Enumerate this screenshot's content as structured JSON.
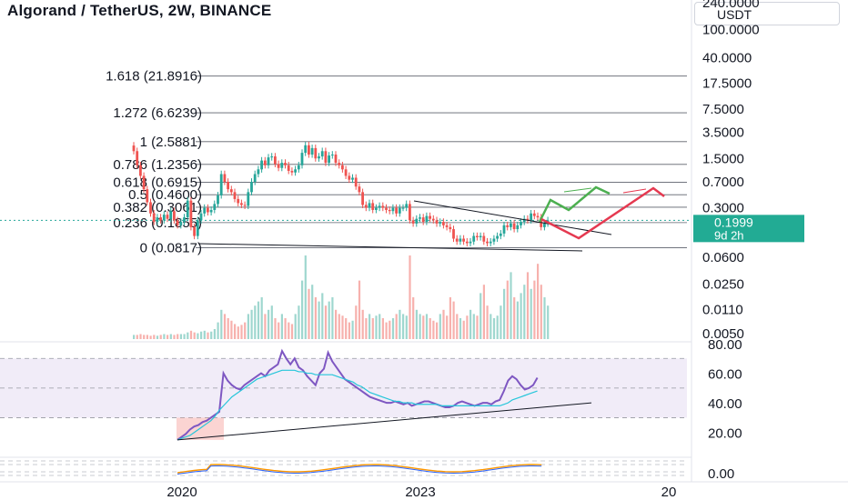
{
  "header": {
    "title": "Algorand / TetherUS, 2W, BINANCE",
    "currency": "USDT"
  },
  "chart_data": [
    {
      "type": "candlestick",
      "title": "Algorand / TetherUS, 2W, BINANCE",
      "y_scale": "log",
      "price_tick_labels": [
        "240.0000",
        "100.0000",
        "40.0000",
        "17.5000",
        "7.5000",
        "3.5000",
        "1.5000",
        "0.7000",
        "0.3000",
        "0.1999",
        "0.0600",
        "0.0250",
        "0.0110",
        "0.0050"
      ],
      "current_price": "0.1999",
      "countdown": "9d 2h",
      "x_tick_labels": [
        "2020",
        "2023",
        "20"
      ],
      "fib_levels": [
        {
          "label": "1.618 (21.8916)",
          "value": 21.8916
        },
        {
          "label": "1.272 (6.6239)",
          "value": 6.6239
        },
        {
          "label": "1 (2.5881)",
          "value": 2.5881
        },
        {
          "label": "0.786 (1.2356)",
          "value": 1.2356
        },
        {
          "label": "0.618 (0.6915)",
          "value": 0.6915
        },
        {
          "label": "0.5 (0.4600)",
          "value": 0.46
        },
        {
          "label": "0.382 (0.3061)",
          "value": 0.3061
        },
        {
          "label": "0.236 (0.1855)",
          "value": 0.1855
        },
        {
          "label": "0 (0.0817)",
          "value": 0.0817
        }
      ],
      "closes": [
        1.9,
        1.2,
        0.85,
        0.55,
        0.36,
        0.25,
        0.19,
        0.22,
        0.2,
        0.24,
        0.21,
        0.27,
        0.2,
        0.17,
        0.19,
        0.22,
        0.38,
        0.16,
        0.12,
        0.2,
        0.25,
        0.3,
        0.26,
        0.28,
        0.34,
        0.45,
        0.9,
        0.7,
        0.55,
        0.5,
        0.4,
        0.35,
        0.33,
        0.32,
        0.5,
        0.7,
        0.9,
        1.05,
        1.4,
        1.2,
        1.55,
        1.6,
        1.25,
        1.1,
        1.3,
        1.2,
        1.0,
        0.95,
        1.05,
        1.2,
        1.8,
        2.3,
        1.7,
        2.1,
        1.5,
        1.6,
        1.9,
        1.3,
        1.65,
        1.7,
        1.3,
        1.2,
        1.05,
        0.85,
        0.75,
        0.8,
        0.6,
        0.5,
        0.33,
        0.3,
        0.35,
        0.28,
        0.3,
        0.32,
        0.3,
        0.28,
        0.27,
        0.3,
        0.25,
        0.3,
        0.3,
        0.34,
        0.2,
        0.18,
        0.21,
        0.22,
        0.19,
        0.23,
        0.21,
        0.2,
        0.18,
        0.19,
        0.17,
        0.16,
        0.15,
        0.11,
        0.1,
        0.11,
        0.1,
        0.095,
        0.1,
        0.12,
        0.115,
        0.12,
        0.1,
        0.095,
        0.1,
        0.11,
        0.12,
        0.13,
        0.17,
        0.16,
        0.18,
        0.15,
        0.17,
        0.19,
        0.21,
        0.2,
        0.25,
        0.23,
        0.22,
        0.16,
        0.18,
        0.2
      ],
      "volume_relative": [
        0.05,
        0.05,
        0.06,
        0.05,
        0.05,
        0.04,
        0.05,
        0.04,
        0.05,
        0.06,
        0.05,
        0.06,
        0.05,
        0.06,
        0.06,
        0.06,
        0.08,
        0.1,
        0.08,
        0.07,
        0.09,
        0.1,
        0.08,
        0.09,
        0.12,
        0.2,
        0.35,
        0.3,
        0.25,
        0.22,
        0.18,
        0.15,
        0.17,
        0.2,
        0.3,
        0.35,
        0.4,
        0.45,
        0.5,
        0.3,
        0.35,
        0.4,
        0.25,
        0.2,
        0.3,
        0.25,
        0.2,
        0.18,
        0.3,
        0.4,
        0.7,
        1.0,
        0.6,
        0.65,
        0.5,
        0.45,
        0.55,
        0.4,
        0.45,
        0.5,
        0.35,
        0.3,
        0.28,
        0.25,
        0.2,
        0.22,
        0.4,
        0.7,
        0.35,
        0.25,
        0.3,
        0.25,
        0.28,
        0.3,
        0.25,
        0.2,
        0.22,
        0.25,
        0.3,
        0.35,
        0.3,
        0.28,
        1.0,
        0.5,
        0.35,
        0.3,
        0.28,
        0.3,
        0.25,
        0.22,
        0.2,
        0.3,
        0.35,
        0.28,
        0.5,
        0.45,
        0.3,
        0.25,
        0.22,
        0.28,
        0.35,
        0.3,
        0.28,
        0.55,
        0.65,
        0.4,
        0.3,
        0.25,
        0.28,
        0.4,
        0.6,
        0.7,
        0.8,
        0.5,
        0.45,
        0.55,
        0.65,
        0.8,
        0.6,
        0.7,
        0.9,
        0.65,
        0.5,
        0.4
      ]
    },
    {
      "type": "line",
      "name": "RSI",
      "tick_labels": [
        "80.00",
        "60.00",
        "40.00",
        "20.00"
      ],
      "ylim": [
        10,
        80
      ],
      "rsi": [
        15,
        17,
        19,
        22,
        24,
        25,
        27,
        28,
        30,
        32,
        34,
        60,
        55,
        52,
        50,
        49,
        52,
        54,
        56,
        58,
        60,
        58,
        62,
        64,
        66,
        75,
        70,
        66,
        70,
        64,
        62,
        58,
        55,
        52,
        60,
        63,
        74,
        68,
        64,
        60,
        56,
        54,
        52,
        50,
        48,
        46,
        44,
        43,
        42,
        41,
        40,
        40,
        41,
        40,
        39,
        40,
        38,
        39,
        40,
        41,
        41,
        40,
        39,
        38,
        37,
        37,
        38,
        40,
        41,
        40,
        39,
        38,
        39,
        40,
        40,
        39,
        41,
        42,
        48,
        55,
        58,
        56,
        52,
        49,
        50,
        52,
        57
      ],
      "rsi_ma": [
        15,
        16,
        17,
        18,
        20,
        22,
        24,
        26,
        28,
        31,
        35,
        38,
        41,
        44,
        46,
        48,
        50,
        52,
        54,
        56,
        57,
        58,
        59,
        60,
        61,
        62,
        62,
        62,
        62,
        61,
        61,
        60,
        60,
        59,
        59,
        59,
        59,
        59,
        58,
        57,
        56,
        55,
        54,
        52,
        51,
        49,
        47,
        46,
        45,
        44,
        43,
        42,
        41,
        41,
        40,
        40,
        40,
        39,
        39,
        39,
        39,
        39,
        39,
        38,
        38,
        38,
        38,
        38,
        38,
        38,
        38,
        38,
        38,
        38,
        38,
        38,
        38,
        38,
        39,
        40,
        42,
        43,
        44,
        45,
        46,
        47,
        48
      ]
    },
    {
      "type": "line",
      "name": "oscillator",
      "tick_labels": [
        "0.00"
      ]
    }
  ]
}
